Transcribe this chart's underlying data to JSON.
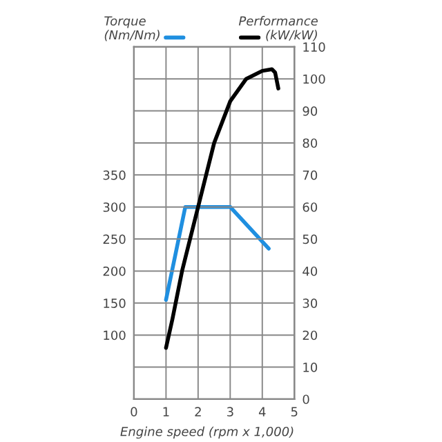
{
  "chart_data": {
    "type": "line",
    "xlabel": "Engine speed (rpm x 1,000)",
    "ylabel": "Torque\n(Nm/Nm)",
    "y2label": "Performance\n(kW/kW)",
    "xlim": [
      0,
      5
    ],
    "xticks": [
      0,
      1,
      2,
      3,
      4,
      5
    ],
    "ylim": [
      0,
      550
    ],
    "yticks": [
      100,
      150,
      200,
      250,
      300,
      350
    ],
    "y2lim": [
      0,
      110
    ],
    "y2ticks": [
      0,
      10,
      20,
      30,
      40,
      50,
      60,
      70,
      80,
      90,
      100,
      110
    ],
    "grid": true,
    "marker": "none",
    "line_style": "solid",
    "series": [
      {
        "color": "#1f8fe0",
        "x": [
          1.0,
          1.6,
          3.0,
          4.2
        ],
        "values": [
          155,
          300,
          300,
          235
        ]
      },
      {
        "color": "#000000",
        "axis": "y2",
        "x": [
          1.0,
          1.2,
          1.5,
          2.0,
          2.5,
          3.0,
          3.5,
          4.0,
          4.3,
          4.4,
          4.5
        ],
        "values": [
          16,
          25,
          40,
          60,
          80,
          93,
          100,
          102.5,
          103,
          102,
          97
        ]
      }
    ]
  }
}
